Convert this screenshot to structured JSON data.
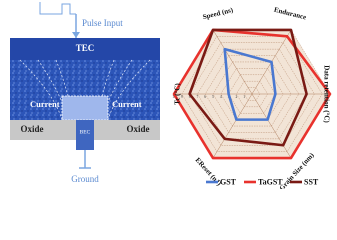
{
  "diagram": {
    "pulse": "Pulse Input",
    "top_electrode": "TEC",
    "current_left": "Current",
    "current_right": "Current",
    "oxide_left": "Oxide",
    "oxide_right": "Oxide",
    "bottom_electrode": "BEC",
    "ground": "Ground"
  },
  "chart_data": {
    "type": "radar",
    "categories": [
      "Speed (ns)",
      "Endurance",
      "Data retention (°C)",
      "Grain Size (nm)",
      "EReset (nJ)",
      "Tc (°C)"
    ],
    "rlim": [
      0,
      10
    ],
    "rticks": [
      1,
      2,
      3,
      4,
      5,
      6,
      7,
      8,
      9,
      10
    ],
    "grid": true,
    "series": [
      {
        "name": "GST",
        "color": "#4a78d0",
        "values": [
          7,
          5,
          3,
          4,
          4,
          3
        ]
      },
      {
        "name": "TaGST",
        "color": "#e8322d",
        "values": [
          10,
          9,
          10,
          10,
          10,
          10
        ]
      },
      {
        "name": "SST",
        "color": "#7a1a14",
        "values": [
          10,
          10,
          7,
          8,
          7,
          8
        ]
      }
    ]
  }
}
